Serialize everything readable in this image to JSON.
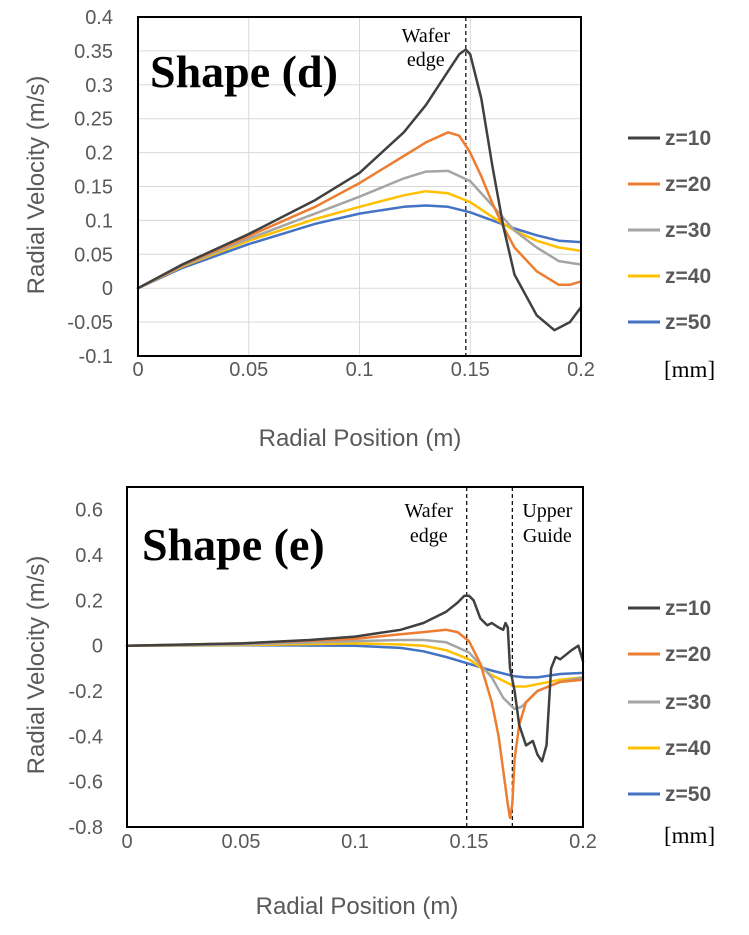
{
  "chart_data": [
    {
      "type": "line",
      "title": "Shape (d)",
      "xlabel": "Radial Position (m)",
      "ylabel": "Radial Velocity (m/s)",
      "xlim": [
        0,
        0.2
      ],
      "ylim": [
        -0.1,
        0.4
      ],
      "xticks": [
        "0",
        "0.05",
        "0.1",
        "0.15",
        "0.2"
      ],
      "xtick_values": [
        0,
        0.05,
        0.1,
        0.15,
        0.2
      ],
      "yticks": [
        "0.4",
        "0.35",
        "0.3",
        "0.25",
        "0.2",
        "0.15",
        "0.1",
        "0.05",
        "0",
        "-0.05",
        "-0.1"
      ],
      "ytick_values": [
        0.4,
        0.35,
        0.3,
        0.25,
        0.2,
        0.15,
        0.1,
        0.05,
        0,
        -0.05,
        -0.1
      ],
      "grid": true,
      "legend_position": "right",
      "legend_units": "[mm]",
      "annotations": [
        {
          "text_lines": [
            "Wafer",
            "edge"
          ],
          "x": 0.148
        }
      ],
      "series": [
        {
          "name": "z=10",
          "color": "#404040",
          "x": [
            0,
            0.02,
            0.05,
            0.08,
            0.1,
            0.12,
            0.13,
            0.14,
            0.145,
            0.148,
            0.15,
            0.155,
            0.16,
            0.165,
            0.17,
            0.18,
            0.188,
            0.195,
            0.2
          ],
          "y": [
            0,
            0.035,
            0.08,
            0.13,
            0.17,
            0.23,
            0.27,
            0.32,
            0.345,
            0.352,
            0.345,
            0.28,
            0.18,
            0.09,
            0.02,
            -0.04,
            -0.062,
            -0.05,
            -0.028
          ]
        },
        {
          "name": "z=20",
          "color": "#ED7D31",
          "x": [
            0,
            0.02,
            0.05,
            0.08,
            0.1,
            0.12,
            0.13,
            0.14,
            0.145,
            0.15,
            0.155,
            0.16,
            0.165,
            0.17,
            0.18,
            0.19,
            0.195,
            0.2
          ],
          "y": [
            0,
            0.034,
            0.077,
            0.12,
            0.155,
            0.195,
            0.215,
            0.23,
            0.225,
            0.2,
            0.165,
            0.125,
            0.09,
            0.06,
            0.025,
            0.005,
            0.005,
            0.01
          ]
        },
        {
          "name": "z=30",
          "color": "#A5A5A5",
          "x": [
            0,
            0.02,
            0.05,
            0.08,
            0.1,
            0.12,
            0.13,
            0.14,
            0.15,
            0.16,
            0.17,
            0.18,
            0.19,
            0.2
          ],
          "y": [
            0,
            0.033,
            0.073,
            0.11,
            0.135,
            0.162,
            0.172,
            0.173,
            0.158,
            0.122,
            0.085,
            0.06,
            0.04,
            0.035
          ]
        },
        {
          "name": "z=40",
          "color": "#FFC000",
          "x": [
            0,
            0.02,
            0.05,
            0.08,
            0.1,
            0.12,
            0.13,
            0.14,
            0.15,
            0.16,
            0.17,
            0.18,
            0.19,
            0.2
          ],
          "y": [
            0,
            0.032,
            0.07,
            0.102,
            0.12,
            0.137,
            0.143,
            0.14,
            0.127,
            0.105,
            0.085,
            0.07,
            0.06,
            0.055
          ]
        },
        {
          "name": "z=50",
          "color": "#4472C4",
          "x": [
            0,
            0.02,
            0.05,
            0.08,
            0.1,
            0.12,
            0.13,
            0.14,
            0.15,
            0.16,
            0.17,
            0.18,
            0.19,
            0.2
          ],
          "y": [
            0,
            0.03,
            0.065,
            0.095,
            0.11,
            0.12,
            0.122,
            0.12,
            0.112,
            0.1,
            0.088,
            0.078,
            0.07,
            0.068
          ]
        }
      ]
    },
    {
      "type": "line",
      "title": "Shape (e)",
      "xlabel": "Radial Position (m)",
      "ylabel": "Radial Velocity (m/s)",
      "xlim": [
        0,
        0.2
      ],
      "ylim": [
        -0.8,
        0.7
      ],
      "xticks": [
        "0",
        "0.05",
        "0.1",
        "0.15",
        "0.2"
      ],
      "xtick_values": [
        0,
        0.05,
        0.1,
        0.15,
        0.2
      ],
      "yticks": [
        "0.6",
        "0.4",
        "0.2",
        "0",
        "-0.2",
        "-0.4",
        "-0.6",
        "-0.8"
      ],
      "ytick_values": [
        0.6,
        0.4,
        0.2,
        0,
        -0.2,
        -0.4,
        -0.6,
        -0.8
      ],
      "grid": false,
      "legend_position": "right",
      "legend_units": "[mm]",
      "annotations": [
        {
          "text_lines": [
            "Wafer",
            "edge"
          ],
          "x": 0.149
        },
        {
          "text_lines": [
            "Upper",
            "Guide"
          ],
          "x": 0.169
        }
      ],
      "series": [
        {
          "name": "z=10",
          "color": "#404040",
          "x": [
            0,
            0.05,
            0.08,
            0.1,
            0.12,
            0.13,
            0.14,
            0.145,
            0.148,
            0.15,
            0.152,
            0.155,
            0.158,
            0.16,
            0.163,
            0.165,
            0.166,
            0.167,
            0.168,
            0.17,
            0.172,
            0.175,
            0.178,
            0.18,
            0.182,
            0.184,
            0.186,
            0.188,
            0.19,
            0.195,
            0.198,
            0.2
          ],
          "y": [
            0,
            0.01,
            0.025,
            0.04,
            0.07,
            0.1,
            0.15,
            0.19,
            0.22,
            0.22,
            0.2,
            0.12,
            0.09,
            0.1,
            0.08,
            0.07,
            0.1,
            0.08,
            -0.1,
            -0.2,
            -0.35,
            -0.44,
            -0.42,
            -0.48,
            -0.51,
            -0.44,
            -0.1,
            -0.05,
            -0.06,
            -0.02,
            0,
            -0.07
          ]
        },
        {
          "name": "z=20",
          "color": "#ED7D31",
          "x": [
            0,
            0.05,
            0.1,
            0.12,
            0.13,
            0.14,
            0.145,
            0.15,
            0.155,
            0.16,
            0.163,
            0.165,
            0.167,
            0.168,
            0.169,
            0.17,
            0.172,
            0.175,
            0.18,
            0.19,
            0.2
          ],
          "y": [
            0,
            0.01,
            0.03,
            0.05,
            0.06,
            0.07,
            0.06,
            0.02,
            -0.08,
            -0.25,
            -0.4,
            -0.55,
            -0.7,
            -0.76,
            -0.7,
            -0.5,
            -0.35,
            -0.25,
            -0.2,
            -0.16,
            -0.15
          ]
        },
        {
          "name": "z=30",
          "color": "#A5A5A5",
          "x": [
            0,
            0.05,
            0.1,
            0.12,
            0.13,
            0.14,
            0.15,
            0.16,
            0.165,
            0.17,
            0.173,
            0.176,
            0.18,
            0.19,
            0.2
          ],
          "y": [
            0,
            0.005,
            0.02,
            0.025,
            0.025,
            0.015,
            -0.03,
            -0.14,
            -0.23,
            -0.28,
            -0.27,
            -0.24,
            -0.2,
            -0.16,
            -0.14
          ]
        },
        {
          "name": "z=40",
          "color": "#FFC000",
          "x": [
            0,
            0.05,
            0.1,
            0.12,
            0.13,
            0.14,
            0.15,
            0.16,
            0.17,
            0.175,
            0.18,
            0.19,
            0.2
          ],
          "y": [
            0,
            0.003,
            0.01,
            0.005,
            0,
            -0.02,
            -0.06,
            -0.13,
            -0.18,
            -0.18,
            -0.17,
            -0.15,
            -0.14
          ]
        },
        {
          "name": "z=50",
          "color": "#4472C4",
          "x": [
            0,
            0.05,
            0.1,
            0.12,
            0.13,
            0.14,
            0.15,
            0.16,
            0.17,
            0.175,
            0.18,
            0.19,
            0.2
          ],
          "y": [
            0,
            0.002,
            0,
            -0.01,
            -0.025,
            -0.05,
            -0.08,
            -0.11,
            -0.135,
            -0.14,
            -0.14,
            -0.125,
            -0.12
          ]
        }
      ]
    }
  ]
}
